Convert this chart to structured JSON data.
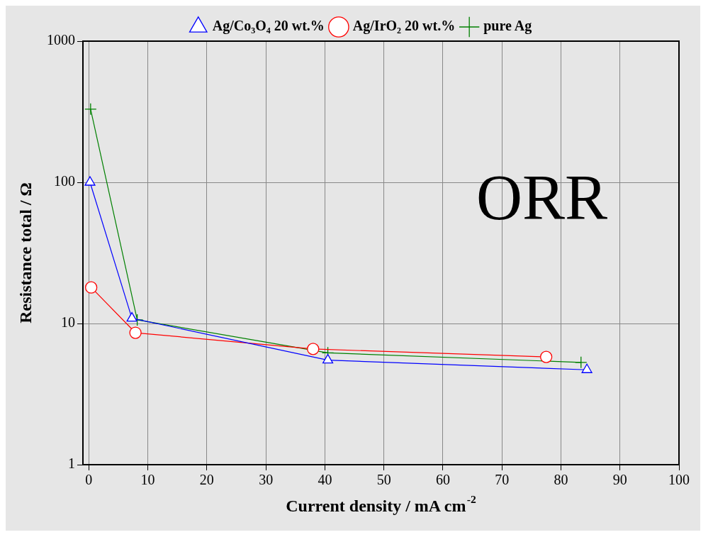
{
  "chart_data": {
    "type": "line",
    "xlabel": "Current density / mA cm$^{-2}$",
    "ylabel": "Resistance total / Ω",
    "annotations": [
      "ORR"
    ],
    "xlim": [
      -1,
      100
    ],
    "xticks": [
      0,
      10,
      20,
      30,
      40,
      50,
      60,
      70,
      80,
      90,
      100
    ],
    "ylim": [
      1,
      1000
    ],
    "yticks": [
      1,
      10,
      100,
      1000
    ],
    "log": "y",
    "grid": true,
    "legend": "top",
    "series": [
      {
        "name": "Ag/Co₃O₄ 20 wt.%",
        "color": "#0000ff",
        "marker": "triangle",
        "x": [
          0.2,
          7.3,
          40.5,
          84.4
        ],
        "values": [
          100,
          10.9,
          5.5,
          4.7
        ]
      },
      {
        "name": "Ag/IrO₂ 20 wt.%",
        "color": "#ff0000",
        "marker": "circle",
        "x": [
          0.4,
          7.9,
          38,
          77.5
        ],
        "values": [
          18,
          8.6,
          6.6,
          5.8
        ]
      },
      {
        "name": "pure Ag",
        "color": "#008000",
        "marker": "cross",
        "x": [
          0.3,
          8.2,
          40.5,
          83.4
        ],
        "values": [
          330,
          10.6,
          6.2,
          5.3
        ]
      }
    ]
  }
}
